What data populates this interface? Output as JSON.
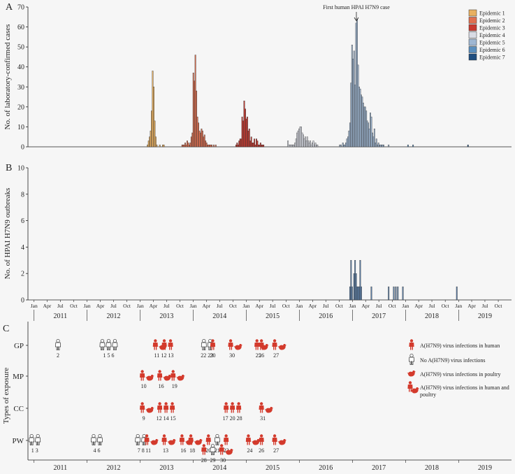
{
  "chart_data": [
    {
      "panel": "A",
      "type": "bar",
      "ylabel": "No. of laboratory-confirmed cases",
      "ylim": [
        0,
        70
      ],
      "yticks": [
        0,
        10,
        20,
        30,
        40,
        50,
        60,
        70
      ],
      "annotation": "First human HPAI H7N9 case",
      "annotation_date": "2017-01",
      "legend": [
        "Epidemic 1",
        "Epidemic 2",
        "Epidemic 3",
        "Epidemic 4",
        "Epidemic 5",
        "Epidemic 6",
        "Epidemic 7"
      ],
      "legend_colors": [
        "#e8b060",
        "#e07050",
        "#c83a30",
        "#d8dbe4",
        "#9fb7d3",
        "#5b8fbe",
        "#1f4e80"
      ],
      "epidemics": [
        {
          "name": "Epidemic 1",
          "start": "2013-02-17",
          "weekly": [
            1,
            3,
            5,
            8,
            18,
            38,
            30,
            13,
            5,
            1,
            0,
            0,
            1,
            0,
            0,
            1,
            1
          ]
        },
        {
          "name": "Epidemic 2",
          "start": "2013-10-13",
          "weekly": [
            1,
            1,
            1,
            2,
            1,
            3,
            2,
            1,
            2,
            5,
            7,
            37,
            33,
            46,
            28,
            15,
            12,
            8,
            7,
            9,
            8,
            5,
            6,
            3,
            2,
            1,
            1,
            1,
            1,
            1,
            0,
            1,
            0,
            1
          ]
        },
        {
          "name": "Epidemic 3",
          "start": "2014-10-19",
          "weekly": [
            1,
            2,
            1,
            3,
            4,
            4,
            15,
            13,
            23,
            19,
            14,
            15,
            8,
            9,
            3,
            5,
            2,
            2,
            4,
            1,
            4,
            3,
            1,
            1,
            2,
            1,
            1,
            1
          ]
        },
        {
          "name": "Epidemic 4",
          "start": "2015-10-11",
          "weekly": [
            3,
            1,
            1,
            1,
            1,
            1,
            1,
            2,
            4,
            7,
            8,
            9,
            10,
            10,
            7,
            6,
            4,
            5,
            3,
            5,
            3,
            2,
            3,
            1,
            2,
            3,
            1,
            2,
            1,
            1
          ]
        },
        {
          "name": "Epidemic 5",
          "start": "2016-10-02",
          "weekly": [
            1,
            1,
            0,
            2,
            1,
            1,
            2,
            4,
            5,
            8,
            12,
            32,
            51,
            44,
            48,
            31,
            62,
            64,
            41,
            30,
            29,
            26,
            25,
            22,
            20,
            20,
            18,
            13,
            12,
            9,
            17,
            15,
            7,
            5,
            9,
            2,
            4,
            1,
            2,
            1,
            1,
            1,
            1,
            1,
            0,
            0,
            0,
            0,
            1
          ]
        },
        {
          "name": "Epidemic 6",
          "start": "2018-01-14",
          "weekly": [
            1,
            0,
            0,
            0,
            0,
            1
          ]
        },
        {
          "name": "Epidemic 7",
          "start": "2019-03-03",
          "weekly": [
            1
          ]
        }
      ],
      "early_weekly": [
        {
          "date": "2013-01-20",
          "value": 0
        }
      ]
    },
    {
      "panel": "B",
      "type": "bar",
      "ylabel": "No. of HPAI H7N9 outbreaks",
      "ylim": [
        0,
        10
      ],
      "yticks": [
        0,
        2,
        4,
        6,
        8,
        10
      ],
      "points": [
        {
          "date": "2016-12-11",
          "value": 1
        },
        {
          "date": "2016-12-18",
          "value": 3
        },
        {
          "date": "2016-12-25",
          "value": 1
        },
        {
          "date": "2017-01-08",
          "value": 2
        },
        {
          "date": "2017-01-15",
          "value": 3
        },
        {
          "date": "2017-01-22",
          "value": 2
        },
        {
          "date": "2017-01-29",
          "value": 1
        },
        {
          "date": "2017-02-05",
          "value": 1
        },
        {
          "date": "2017-02-12",
          "value": 1
        },
        {
          "date": "2017-02-19",
          "value": 3
        },
        {
          "date": "2017-02-26",
          "value": 1
        },
        {
          "date": "2017-05-07",
          "value": 1
        },
        {
          "date": "2017-09-03",
          "value": 1
        },
        {
          "date": "2017-10-08",
          "value": 1
        },
        {
          "date": "2017-10-22",
          "value": 1
        },
        {
          "date": "2017-11-05",
          "value": 1
        },
        {
          "date": "2017-12-10",
          "value": 1
        },
        {
          "date": "2018-12-16",
          "value": 1
        }
      ],
      "bar_color": "#5b7fa8"
    },
    {
      "panel": "C",
      "type": "symbol-timeline",
      "ylabel": "Types of exposure",
      "rows": [
        "GP",
        "MP",
        "CC",
        "PW"
      ],
      "legend": [
        {
          "kind": "human-infected",
          "label": "A(H7N9) virus infections in human"
        },
        {
          "kind": "human-negative",
          "label": "No A(H7N9) virus infections"
        },
        {
          "kind": "poultry",
          "label": "A(H7N9) virus infections in poultry"
        },
        {
          "kind": "human-poultry",
          "label": "A(H7N9) virus infections in human and poultry"
        }
      ],
      "events": [
        {
          "row": "GP",
          "date": "2011-06",
          "kind": "neg",
          "count": 1,
          "label": "2"
        },
        {
          "row": "GP",
          "date": "2012-04",
          "kind": "neg",
          "count": 3,
          "label": "1  5  6"
        },
        {
          "row": "GP",
          "date": "2013-04",
          "kind": "hp",
          "count": 1,
          "label": "11"
        },
        {
          "row": "GP",
          "date": "2013-06",
          "kind": "h",
          "count": 2,
          "label": "12 13"
        },
        {
          "row": "GP",
          "date": "2014-03",
          "kind": "neg",
          "count": 2,
          "label": "22 23"
        },
        {
          "row": "GP",
          "date": "2014-05",
          "kind": "h",
          "count": 1,
          "label": "20"
        },
        {
          "row": "GP",
          "date": "2014-09",
          "kind": "hp",
          "count": 1,
          "label": "30"
        },
        {
          "row": "GP",
          "date": "2015-03",
          "kind": "hp",
          "count": 1,
          "label": "25"
        },
        {
          "row": "GP",
          "date": "2015-04",
          "kind": "h",
          "count": 1,
          "label": "26"
        },
        {
          "row": "GP",
          "date": "2015-07",
          "kind": "hp",
          "count": 1,
          "label": "27"
        },
        {
          "row": "MP",
          "date": "2013-01",
          "kind": "hp",
          "count": 1,
          "label": "10"
        },
        {
          "row": "MP",
          "date": "2013-05",
          "kind": "hp",
          "count": 1,
          "label": "16"
        },
        {
          "row": "MP",
          "date": "2013-08",
          "kind": "hp",
          "count": 1,
          "label": "19"
        },
        {
          "row": "CC",
          "date": "2013-01",
          "kind": "hp",
          "count": 1,
          "label": "9"
        },
        {
          "row": "CC",
          "date": "2013-05",
          "kind": "h",
          "count": 3,
          "label": "12 14 15"
        },
        {
          "row": "CC",
          "date": "2014-08",
          "kind": "h",
          "count": 3,
          "label": "17 20 28"
        },
        {
          "row": "CC",
          "date": "2015-04",
          "kind": "hp",
          "count": 1,
          "label": "31"
        },
        {
          "row": "PW",
          "date": "2010-12",
          "kind": "neg",
          "count": 2,
          "label": "1  3"
        },
        {
          "row": "PW",
          "date": "2012-02",
          "kind": "neg",
          "count": 2,
          "label": "4  6"
        },
        {
          "row": "PW",
          "date": "2012-12",
          "kind": "neg",
          "count": 2,
          "label": "7  8"
        },
        {
          "row": "PW",
          "date": "2013-02",
          "kind": "hp",
          "count": 1,
          "label": "11"
        },
        {
          "row": "PW",
          "date": "2013-06",
          "kind": "hp",
          "count": 1,
          "label": "13"
        },
        {
          "row": "PW",
          "date": "2013-10",
          "kind": "hp",
          "count": 1,
          "label": "16"
        },
        {
          "row": "PW",
          "date": "2013-12",
          "kind": "hp",
          "count": 1,
          "label": "18"
        },
        {
          "row": "PW",
          "date": "2014-04",
          "kind": "h",
          "count": 1,
          "label": "20"
        },
        {
          "row": "PW",
          "date": "2014-06",
          "kind": "neg",
          "count": 1,
          "label": "21"
        },
        {
          "row": "PW",
          "date": "2014-08",
          "kind": "h",
          "count": 1,
          "label": "22"
        },
        {
          "row": "PW",
          "date": "2014-03",
          "kind": "h",
          "count": 1,
          "label": "28",
          "sub": true
        },
        {
          "row": "PW",
          "date": "2014-05",
          "kind": "neg",
          "count": 1,
          "label": "29",
          "sub": true
        },
        {
          "row": "PW",
          "date": "2014-07",
          "kind": "hp",
          "count": 1,
          "label": "30",
          "sub": true
        },
        {
          "row": "PW",
          "date": "2015-01",
          "kind": "hp",
          "count": 1,
          "label": "24"
        },
        {
          "row": "PW",
          "date": "2015-04",
          "kind": "h",
          "count": 1,
          "label": "26"
        },
        {
          "row": "PW",
          "date": "2015-07",
          "kind": "hp",
          "count": 1,
          "label": "27"
        }
      ]
    }
  ],
  "timeaxis": {
    "years": [
      "2011",
      "2012",
      "2013",
      "2014",
      "2015",
      "2016",
      "2017",
      "2018",
      "2019"
    ],
    "months": [
      "Jan",
      "Apr",
      "Jul",
      "Oct"
    ],
    "start": "2010-11-20",
    "end": "2019-12-31"
  },
  "panel_labels": {
    "a": "A",
    "b": "B",
    "c": "C"
  }
}
